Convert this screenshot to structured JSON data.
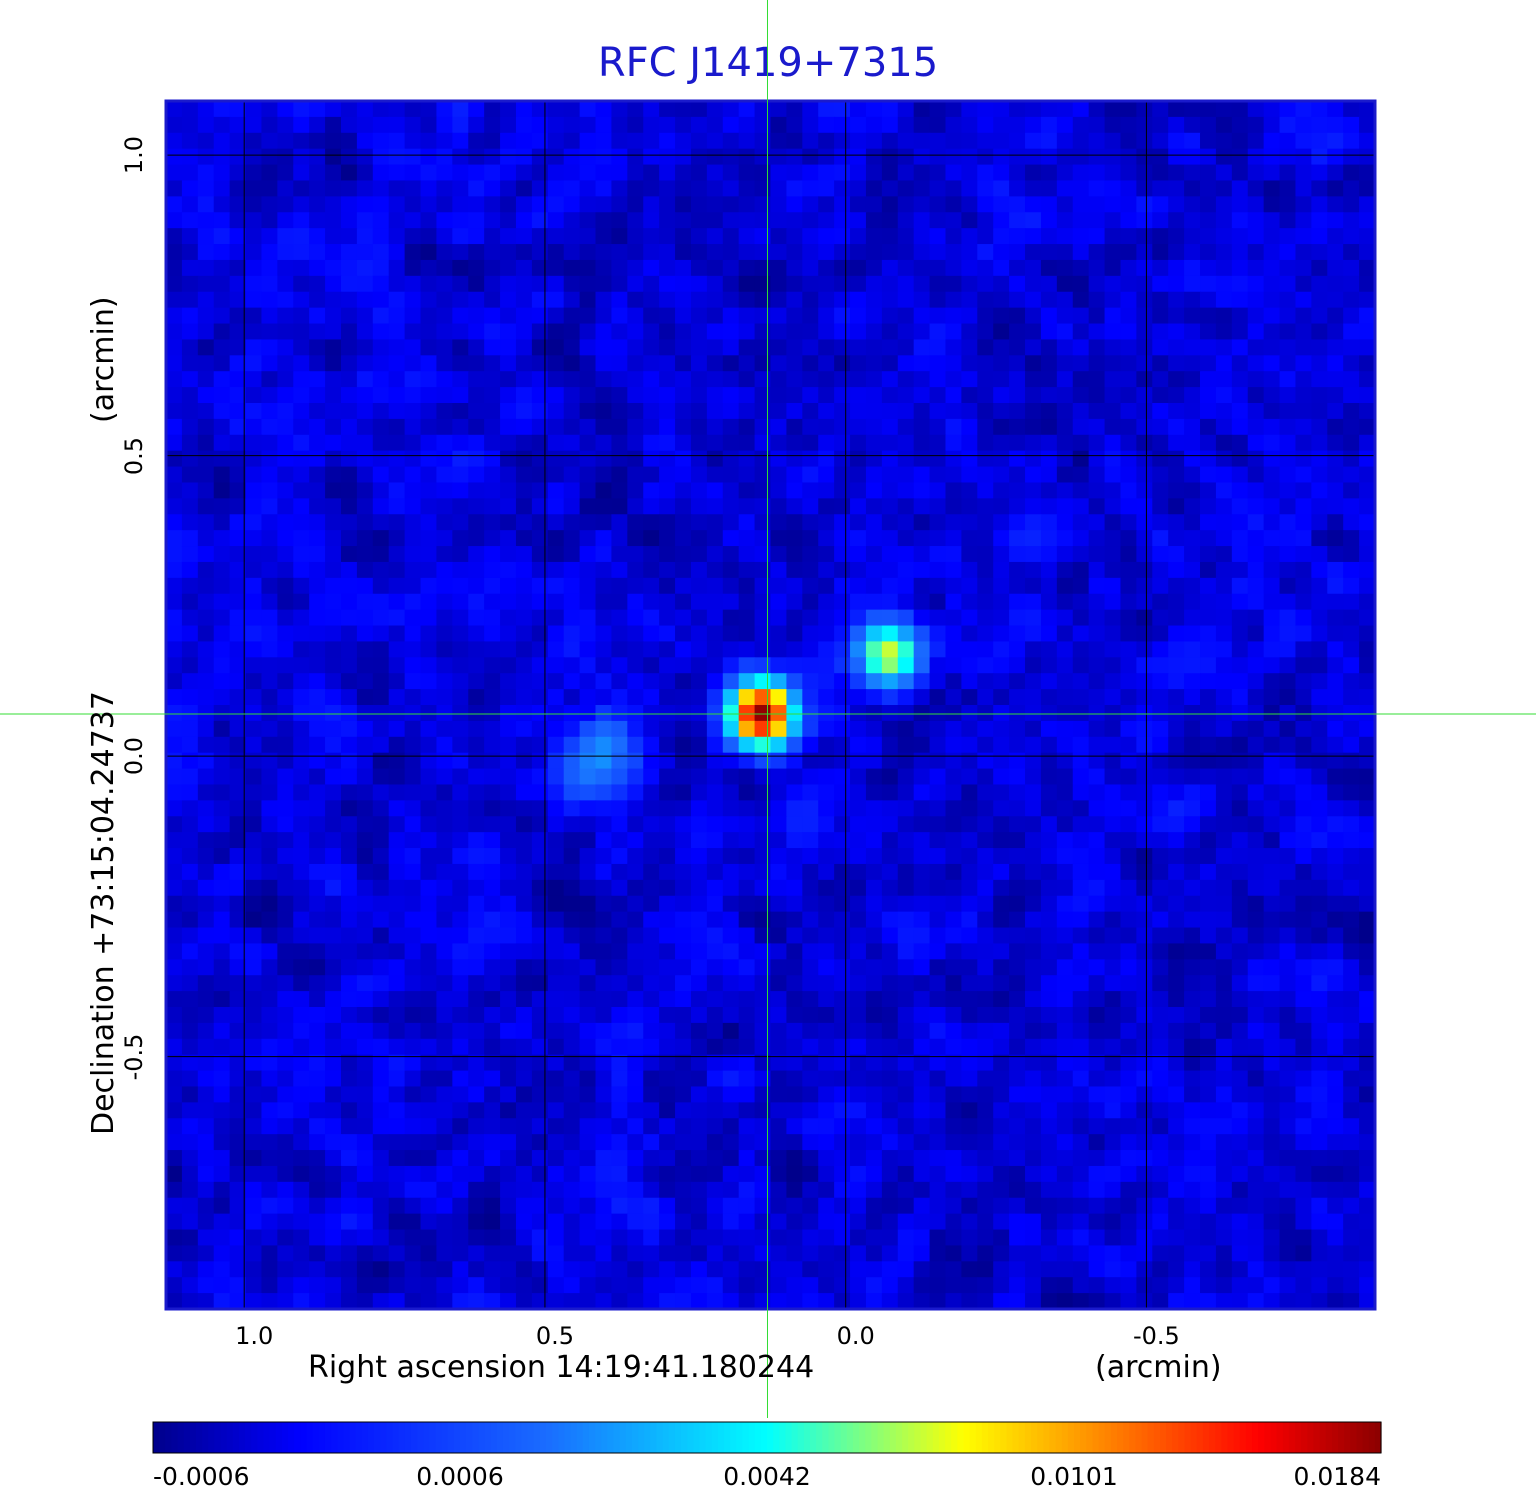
{
  "chart_data": {
    "type": "heatmap",
    "title": "RFC J1419+7315",
    "xlabel": "Right ascension  14:19:41.180244",
    "xunit": "(arcmin)",
    "ylabel": "Declination  +73:15:04.24737",
    "yunit": "(arcmin)",
    "x_ticks": [
      "1.0",
      "0.5",
      "0.0",
      "-0.5"
    ],
    "y_ticks": [
      "1.0",
      "0.5",
      "0.0",
      "-0.5"
    ],
    "xlim": [
      1.13,
      -0.88
    ],
    "ylim": [
      -0.92,
      1.09
    ],
    "grid": true,
    "crosshair": {
      "x": 0.13,
      "y": 0.07,
      "color": "#33dd33"
    },
    "colorbar": {
      "ticks": [
        "-0.0006",
        "0.0006",
        "0.0042",
        "0.0101",
        "0.0184"
      ],
      "colors": [
        "#00008b",
        "#0000ff",
        "#1a6cff",
        "#00ffff",
        "#ffff00",
        "#ff8000",
        "#ff0000",
        "#8b0000"
      ]
    },
    "sources": [
      {
        "x": 0.14,
        "y": 0.07,
        "peak": 0.0184
      },
      {
        "x": -0.07,
        "y": 0.17,
        "peak": 0.0075
      },
      {
        "x": 0.39,
        "y": 0.02,
        "peak": 0.002
      },
      {
        "x": 0.43,
        "y": -0.02,
        "peak": 0.0016
      }
    ]
  }
}
